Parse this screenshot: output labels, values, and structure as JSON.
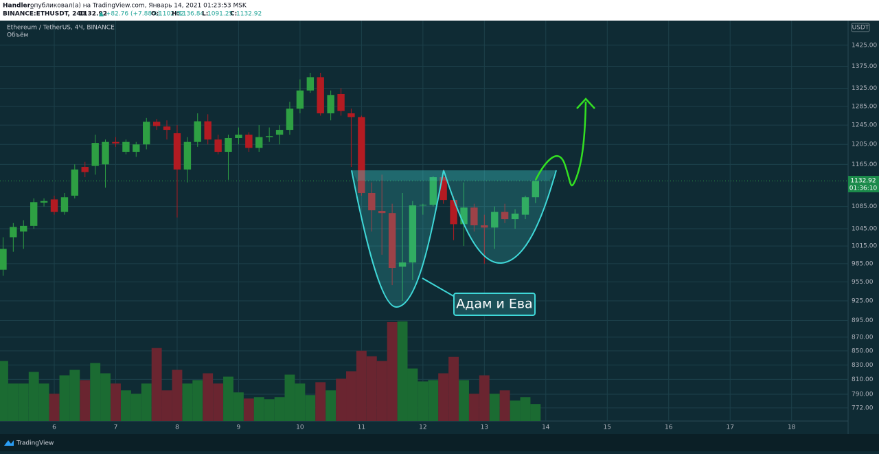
{
  "header": {
    "author": "Handler_",
    "published": "опубликовал(а) на TradingView.com, Январь 14, 2021 01:23:53 MSK",
    "symbol": "BINANCE:ETHUSDT, 240",
    "change": "▲ +82.76 (+7.88%)",
    "open_label": "O:",
    "high_label": "H:",
    "low_label": "L:",
    "close_label": "C:"
  },
  "footer": {
    "brand": "TradingView"
  },
  "chart_data": {
    "type": "candlestick",
    "title": "Ethereum / TetherUS, 4Ч, BINANCE",
    "volume_label": "Объём",
    "currency": "USDT",
    "countdown": "01:36:10",
    "annotation": "Адам и Ева",
    "up_color": "#2ea043",
    "down_color": "#b31b22",
    "volume_up_color": "#1b6b32",
    "volume_down_color": "#6a2530",
    "log_scale": true,
    "grid": true,
    "x": [
      5.167,
      5.333,
      5.5,
      5.667,
      5.833,
      6,
      6.167,
      6.333,
      6.5,
      6.667,
      6.833,
      7,
      7.167,
      7.333,
      7.5,
      7.667,
      7.833,
      8,
      8.167,
      8.333,
      8.5,
      8.667,
      8.833,
      9,
      9.167,
      9.333,
      9.5,
      9.667,
      9.833,
      10,
      10.167,
      10.333,
      10.5,
      10.667,
      10.833,
      11,
      11.167,
      11.333,
      11.5,
      11.667,
      11.833,
      12,
      12.167,
      12.333,
      12.5,
      12.667,
      12.833,
      13,
      13.167,
      13.333,
      13.5,
      13.667,
      13.833
    ],
    "open": [
      975,
      1030,
      1040,
      1050,
      1092,
      1098,
      1075,
      1105,
      1160,
      1162,
      1165,
      1210,
      1190,
      1190,
      1205,
      1252,
      1242,
      1228,
      1155,
      1210,
      1253,
      1215,
      1190,
      1218,
      1225,
      1198,
      1220,
      1225,
      1235,
      1280,
      1320,
      1350,
      1270,
      1312,
      1270,
      1262,
      1110,
      1077,
      1073,
      980,
      987,
      1087,
      1088,
      1140,
      1097,
      1053,
      1083,
      1051,
      1047,
      1075,
      1062,
      1070,
      1102.02
    ],
    "high": [
      1030,
      1055,
      1060,
      1100,
      1100,
      1105,
      1110,
      1165,
      1170,
      1225,
      1215,
      1220,
      1215,
      1210,
      1260,
      1258,
      1255,
      1245,
      1220,
      1270,
      1268,
      1225,
      1225,
      1240,
      1230,
      1245,
      1240,
      1245,
      1295,
      1345,
      1360,
      1360,
      1320,
      1325,
      1280,
      1265,
      1130,
      1145,
      1090,
      1110,
      1095,
      1090,
      1142,
      1155,
      1105,
      1130,
      1090,
      1070,
      1085,
      1090,
      1080,
      1105,
      1136.84
    ],
    "low": [
      965,
      1005,
      1010,
      1045,
      1085,
      1070,
      1070,
      1100,
      1140,
      1145,
      1120,
      1200,
      1185,
      1180,
      1195,
      1235,
      1215,
      1065,
      1130,
      1200,
      1205,
      1185,
      1135,
      1205,
      1190,
      1190,
      1210,
      1205,
      1225,
      1270,
      1315,
      1265,
      1255,
      1265,
      1160,
      1105,
      1040,
      1000,
      950,
      925,
      958,
      1070,
      1085,
      1090,
      1025,
      1015,
      1040,
      985,
      1010,
      1055,
      1045,
      1062,
      1091.25
    ],
    "close": [
      1010,
      1048,
      1050,
      1093,
      1095,
      1075,
      1102,
      1155,
      1150,
      1208,
      1210,
      1207,
      1210,
      1205,
      1252,
      1243,
      1235,
      1155,
      1210,
      1253,
      1215,
      1190,
      1218,
      1225,
      1198,
      1220,
      1222,
      1235,
      1280,
      1320,
      1350,
      1270,
      1310,
      1275,
      1262,
      1110,
      1078,
      1073,
      978,
      987,
      1087,
      1088,
      1140,
      1097,
      1053,
      1083,
      1051,
      1047,
      1075,
      1062,
      1072,
      1102,
      1132.92
    ],
    "volume": [
      88,
      55,
      55,
      72,
      55,
      40,
      67,
      75,
      60,
      85,
      70,
      55,
      45,
      40,
      55,
      107,
      45,
      75,
      55,
      60,
      70,
      55,
      65,
      42,
      33,
      35,
      32,
      35,
      68,
      55,
      38,
      57,
      45,
      62,
      73,
      103,
      95,
      88,
      145,
      146,
      77,
      58,
      60,
      70,
      94,
      60,
      40,
      67,
      40,
      45,
      30,
      35,
      25
    ],
    "xlim": [
      5.117,
      18.92
    ],
    "xticks": [
      6,
      7,
      8,
      9,
      10,
      11,
      12,
      13,
      14,
      15,
      16,
      17,
      18
    ],
    "ylim": [
      755,
      1482
    ],
    "yticks": [
      {
        "value": 1425,
        "label": "1425.00"
      },
      {
        "value": 1375,
        "label": "1375.00"
      },
      {
        "value": 1325,
        "label": "1325.00"
      },
      {
        "value": 1285,
        "label": "1285.00"
      },
      {
        "value": 1245,
        "label": "1245.00"
      },
      {
        "value": 1205,
        "label": "1205.00"
      },
      {
        "value": 1165,
        "label": "1165.00"
      },
      {
        "value": 1085,
        "label": "1085.00"
      },
      {
        "value": 1045,
        "label": "1045.00"
      },
      {
        "value": 1015,
        "label": "1015.00"
      },
      {
        "value": 985,
        "label": "985.00"
      },
      {
        "value": 955,
        "label": "955.00"
      },
      {
        "value": 925,
        "label": "925.00"
      },
      {
        "value": 895,
        "label": "895.00"
      },
      {
        "value": 870,
        "label": "870.00"
      },
      {
        "value": 850,
        "label": "850.00"
      },
      {
        "value": 830,
        "label": "830.00"
      },
      {
        "value": 810,
        "label": "810.00"
      },
      {
        "value": 790,
        "label": "790.00"
      },
      {
        "value": 772,
        "label": "772.00"
      }
    ]
  }
}
